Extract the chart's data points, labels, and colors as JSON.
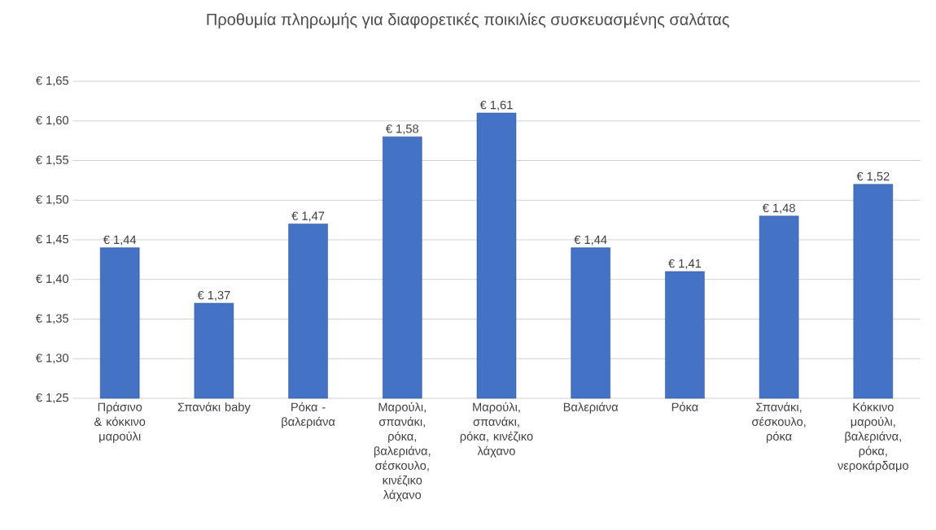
{
  "chart_data": {
    "type": "bar",
    "title": "Προθυμία πληρωμής για διαφορετικές ποικιλίες συσκευασμένης σαλάτας",
    "categories": [
      "Πράσινο & κόκκινο μαρούλι",
      "Σπανάκι baby",
      "Ρόκα - βαλεριάνα",
      "Μαρούλι, σπανάκι, ρόκα, βαλεριάνα, σέσκουλο, κινέζικο λάχανο",
      "Μαρούλι, σπανάκι, ρόκα, κινέζικο λάχανο",
      "Βαλεριάνα",
      "Ρόκα",
      "Σπανάκι, σέσκουλο, ρόκα",
      "Κόκκινο μαρούλι, βαλεριάνα, ρόκα, νεροκάρδαμο"
    ],
    "values": [
      1.44,
      1.37,
      1.47,
      1.58,
      1.61,
      1.44,
      1.41,
      1.48,
      1.52
    ],
    "value_labels": [
      "€ 1,44",
      "€ 1,37",
      "€ 1,47",
      "€ 1,58",
      "€ 1,61",
      "€ 1,44",
      "€ 1,41",
      "€ 1,48",
      "€ 1,52"
    ],
    "color": "#4472c4",
    "ylim": [
      1.25,
      1.65
    ],
    "yticks": [
      {
        "value": 1.25,
        "label": "€ 1,25"
      },
      {
        "value": 1.3,
        "label": "€ 1,30"
      },
      {
        "value": 1.35,
        "label": "€ 1,35"
      },
      {
        "value": 1.4,
        "label": "€ 1,40"
      },
      {
        "value": 1.45,
        "label": "€ 1,45"
      },
      {
        "value": 1.5,
        "label": "€ 1,50"
      },
      {
        "value": 1.55,
        "label": "€ 1,55"
      },
      {
        "value": 1.6,
        "label": "€ 1,60"
      },
      {
        "value": 1.65,
        "label": "€ 1,65"
      }
    ],
    "grid": "y"
  }
}
